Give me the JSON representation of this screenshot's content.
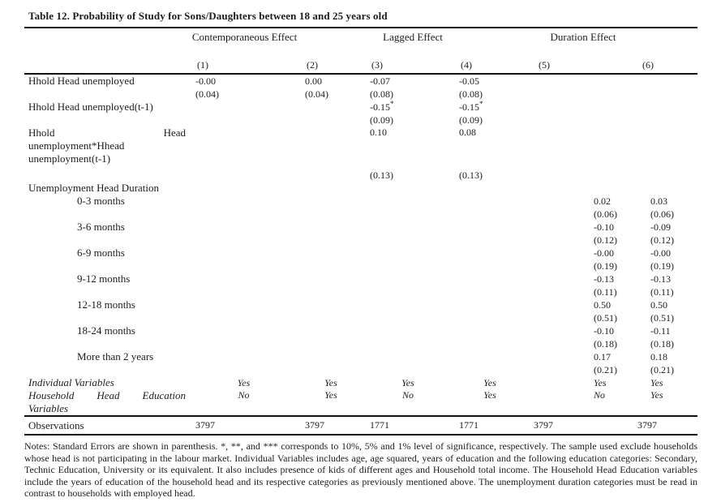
{
  "title": "Table 12. Probability of Study for Sons/Daughters between 18 and 25 years old",
  "header": {
    "groups": [
      {
        "label": "Contemporaneous Effect"
      },
      {
        "label": "Lagged Effect"
      },
      {
        "label": "Duration Effect"
      }
    ],
    "columns": [
      "(1)",
      "(2)",
      "(3)",
      "(4)",
      "(5)",
      "(6)"
    ]
  },
  "table": {
    "rows": [
      {
        "name": "row-hhold-head-unemployed",
        "label": [
          {
            "t": "Hhold Head unemployed"
          }
        ],
        "cells": [
          "-0.00",
          "0.00",
          "-0.07",
          "-0.05",
          "",
          ""
        ]
      },
      {
        "name": "row-se-hhold-head-unemployed",
        "cells": [
          "(0.04)",
          "(0.04)",
          "(0.08)",
          "(0.08)",
          "",
          ""
        ]
      },
      {
        "name": "row-hhold-head-unemployed-t1",
        "label": [
          {
            "t": "Hhold Head unemployed(t-1)"
          }
        ],
        "cells": [
          "",
          "",
          "-0.15*",
          "-0.15*",
          "",
          ""
        ]
      },
      {
        "name": "row-se-hhold-head-unemployed-t1",
        "cells": [
          "",
          "",
          "(0.09)",
          "(0.09)",
          "",
          ""
        ]
      },
      {
        "name": "row-unemployment-interaction",
        "top": true,
        "label": [
          {
            "t": "Hhold Head",
            "j": true
          },
          {
            "t": "unemployment*Hhead"
          },
          {
            "t": "unemployment(t-1)"
          }
        ],
        "cells": [
          "",
          "",
          "0.10",
          "0.08",
          "",
          ""
        ]
      },
      {
        "name": "spacer-row",
        "spacer": true
      },
      {
        "name": "row-se-unemployment-interaction",
        "cells": [
          "",
          "",
          "(0.13)",
          "(0.13)",
          "",
          ""
        ]
      },
      {
        "name": "row-unemployment-head-duration",
        "label": [
          {
            "t": "Unemployment Head Duration"
          }
        ],
        "cells": [
          "",
          "",
          "",
          "",
          "",
          ""
        ]
      },
      {
        "name": "row-0-3-months",
        "indent": true,
        "far": true,
        "label": [
          {
            "t": "0-3 months"
          }
        ],
        "cells": [
          "",
          "",
          "",
          "",
          "0.02",
          "0.03"
        ]
      },
      {
        "name": "row-se-0-3-months",
        "far": true,
        "cells": [
          "",
          "",
          "",
          "",
          "(0.06)",
          "(0.06)"
        ]
      },
      {
        "name": "row-3-6-months",
        "indent": true,
        "far": true,
        "label": [
          {
            "t": "3-6 months"
          }
        ],
        "cells": [
          "",
          "",
          "",
          "",
          "-0.10",
          "-0.09"
        ]
      },
      {
        "name": "row-se-3-6-months",
        "far": true,
        "cells": [
          "",
          "",
          "",
          "",
          "(0.12)",
          "(0.12)"
        ]
      },
      {
        "name": "row-6-9-months",
        "indent": true,
        "far": true,
        "label": [
          {
            "t": "6-9 months"
          }
        ],
        "cells": [
          "",
          "",
          "",
          "",
          "-0.00",
          "-0.00"
        ]
      },
      {
        "name": "row-se-6-9-months",
        "far": true,
        "cells": [
          "",
          "",
          "",
          "",
          "(0.19)",
          "(0.19)"
        ]
      },
      {
        "name": "row-9-12-months",
        "indent": true,
        "far": true,
        "label": [
          {
            "t": "9-12 months"
          }
        ],
        "cells": [
          "",
          "",
          "",
          "",
          "-0.13",
          "-0.13"
        ]
      },
      {
        "name": "row-se-9-12-months",
        "far": true,
        "cells": [
          "",
          "",
          "",
          "",
          "(0.11)",
          "(0.11)"
        ]
      },
      {
        "name": "row-12-18-months",
        "indent": true,
        "far": true,
        "label": [
          {
            "t": "12-18 months"
          }
        ],
        "cells": [
          "",
          "",
          "",
          "",
          "0.50",
          "0.50"
        ]
      },
      {
        "name": "row-se-12-18-months",
        "far": true,
        "cells": [
          "",
          "",
          "",
          "",
          "(0.51)",
          "(0.51)"
        ]
      },
      {
        "name": "row-18-24-months",
        "indent": true,
        "far": true,
        "label": [
          {
            "t": "18-24 months"
          }
        ],
        "cells": [
          "",
          "",
          "",
          "",
          "-0.10",
          "-0.11"
        ]
      },
      {
        "name": "row-se-18-24-months",
        "far": true,
        "cells": [
          "",
          "",
          "",
          "",
          "(0.18)",
          "(0.18)"
        ]
      },
      {
        "name": "row-more-than-2-years",
        "indent": true,
        "far": true,
        "label": [
          {
            "t": "More than 2 years"
          }
        ],
        "cells": [
          "",
          "",
          "",
          "",
          "0.17",
          "0.18"
        ]
      },
      {
        "name": "row-se-more-than-2-years",
        "far": true,
        "cells": [
          "",
          "",
          "",
          "",
          "(0.21)",
          "(0.21)"
        ]
      },
      {
        "name": "row-individual-variables",
        "italic": true,
        "center": true,
        "far": true,
        "label": [
          {
            "t": "Individual Variables"
          }
        ],
        "cells": [
          "Yes",
          "Yes",
          "Yes",
          "Yes",
          "Yes",
          "Yes"
        ]
      },
      {
        "name": "row-household-head-education-variables",
        "italic": true,
        "center": true,
        "far": true,
        "top": true,
        "label": [
          {
            "t": "Household Head Education",
            "j": true
          },
          {
            "t": "Variables"
          }
        ],
        "cells": [
          "No",
          "Yes",
          "No",
          "Yes",
          "No",
          "Yes"
        ]
      },
      {
        "name": "row-observations",
        "obs": true,
        "label": [
          {
            "t": "Observations"
          }
        ],
        "cells": [
          "3797",
          "3797",
          "1771",
          "1771",
          "3797",
          "3797"
        ]
      }
    ]
  },
  "notes": "Notes: Standard Errors are shown in parenthesis. *, **, and *** corresponds to 10%, 5% and 1% level of significance, respectively. The sample used exclude households whose head is not participating in the labour market. Individual Variables includes age, age squared, years of education and the following education categories: Secondary, Technic Education, University or its equivalent. It also includes presence of kids of different ages and Household total income. The Household Head Education variables include the years of education of the household head and its respective categories as previously mentioned above. The unemployment duration categories must be read in contrast to households with employed head."
}
